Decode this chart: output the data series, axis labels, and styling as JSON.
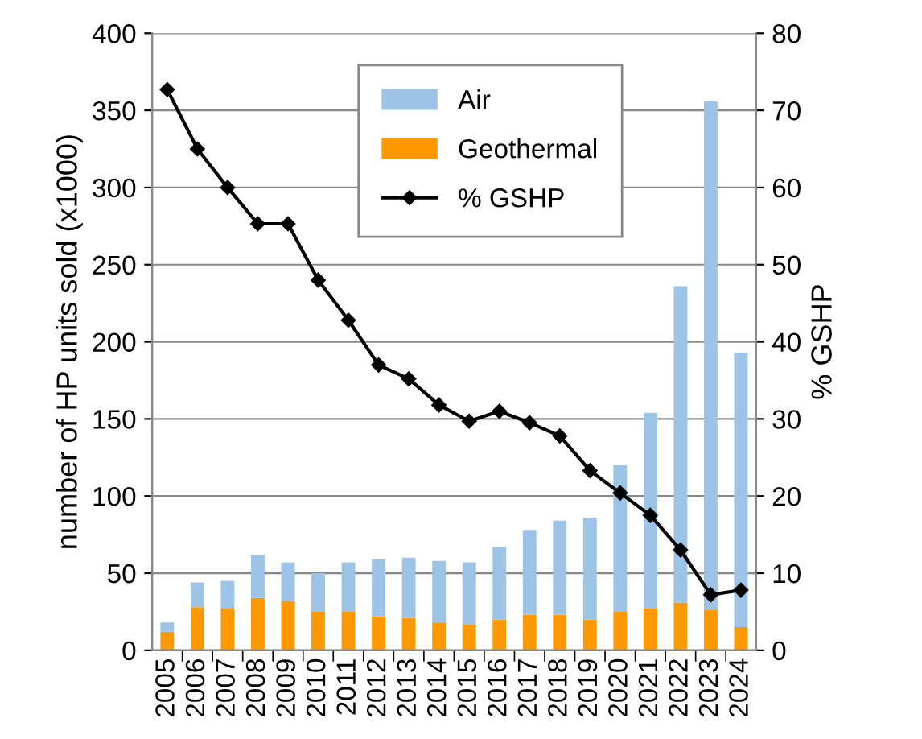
{
  "chart_data": {
    "type": "bar",
    "stacked": true,
    "categories": [
      "2005",
      "2006",
      "2007",
      "2008",
      "2009",
      "2010",
      "2011",
      "2012",
      "2013",
      "2014",
      "2015",
      "2016",
      "2017",
      "2018",
      "2019",
      "2020",
      "2021",
      "2022",
      "2023",
      "2024"
    ],
    "series": [
      {
        "name": "Geothermal",
        "color": "#ff9900",
        "values": [
          12,
          28,
          27,
          34,
          32,
          25,
          25,
          22,
          21,
          18,
          17,
          20,
          23,
          23,
          20,
          25,
          27,
          31,
          26,
          15
        ]
      },
      {
        "name": "Air",
        "color": "#9dc3e6",
        "values": [
          6,
          16,
          18,
          28,
          25,
          25,
          32,
          37,
          39,
          40,
          40,
          47,
          55,
          61,
          66,
          95,
          127,
          205,
          330,
          178
        ]
      },
      {
        "name": "% GSHP",
        "type": "line",
        "axis": "y2",
        "color": "#000000",
        "marker": "diamond",
        "values": [
          72.7,
          65,
          60,
          55.3,
          55.3,
          48,
          42.8,
          37,
          35.2,
          31.8,
          29.7,
          31,
          29.5,
          27.8,
          23.3,
          20.4,
          17.5,
          13,
          7.2,
          7.8
        ]
      }
    ],
    "ylabel": "number of HP units sold (x1000)",
    "y2label": "% GSHP",
    "ylim": [
      0,
      400
    ],
    "yticks": [
      0,
      50,
      100,
      150,
      200,
      250,
      300,
      350,
      400
    ],
    "y2lim": [
      0,
      80
    ],
    "y2ticks": [
      0,
      10,
      20,
      30,
      40,
      50,
      60,
      70,
      80
    ],
    "grid": "y",
    "legend": "top"
  }
}
